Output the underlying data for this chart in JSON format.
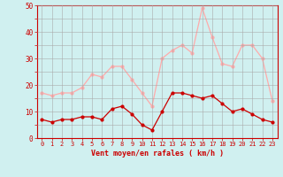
{
  "x": [
    0,
    1,
    2,
    3,
    4,
    5,
    6,
    7,
    8,
    9,
    10,
    11,
    12,
    13,
    14,
    15,
    16,
    17,
    18,
    19,
    20,
    21,
    22,
    23
  ],
  "wind_avg": [
    7,
    6,
    7,
    7,
    8,
    8,
    7,
    11,
    12,
    9,
    5,
    3,
    10,
    17,
    17,
    16,
    15,
    16,
    13,
    10,
    11,
    9,
    7,
    6
  ],
  "wind_gust": [
    17,
    16,
    17,
    17,
    19,
    24,
    23,
    27,
    27,
    22,
    17,
    12,
    30,
    33,
    35,
    32,
    49,
    38,
    28,
    27,
    35,
    35,
    30,
    14
  ],
  "avg_color": "#cc0000",
  "gust_color": "#ffaaaa",
  "bg_color": "#d0f0f0",
  "grid_color": "#aaaaaa",
  "xlabel": "Vent moyen/en rafales ( km/h )",
  "ylabel_ticks": [
    0,
    5,
    10,
    15,
    20,
    25,
    30,
    35,
    40,
    45,
    50
  ],
  "ylim": [
    0,
    50
  ],
  "xlim_min": -0.5,
  "xlim_max": 23.5
}
